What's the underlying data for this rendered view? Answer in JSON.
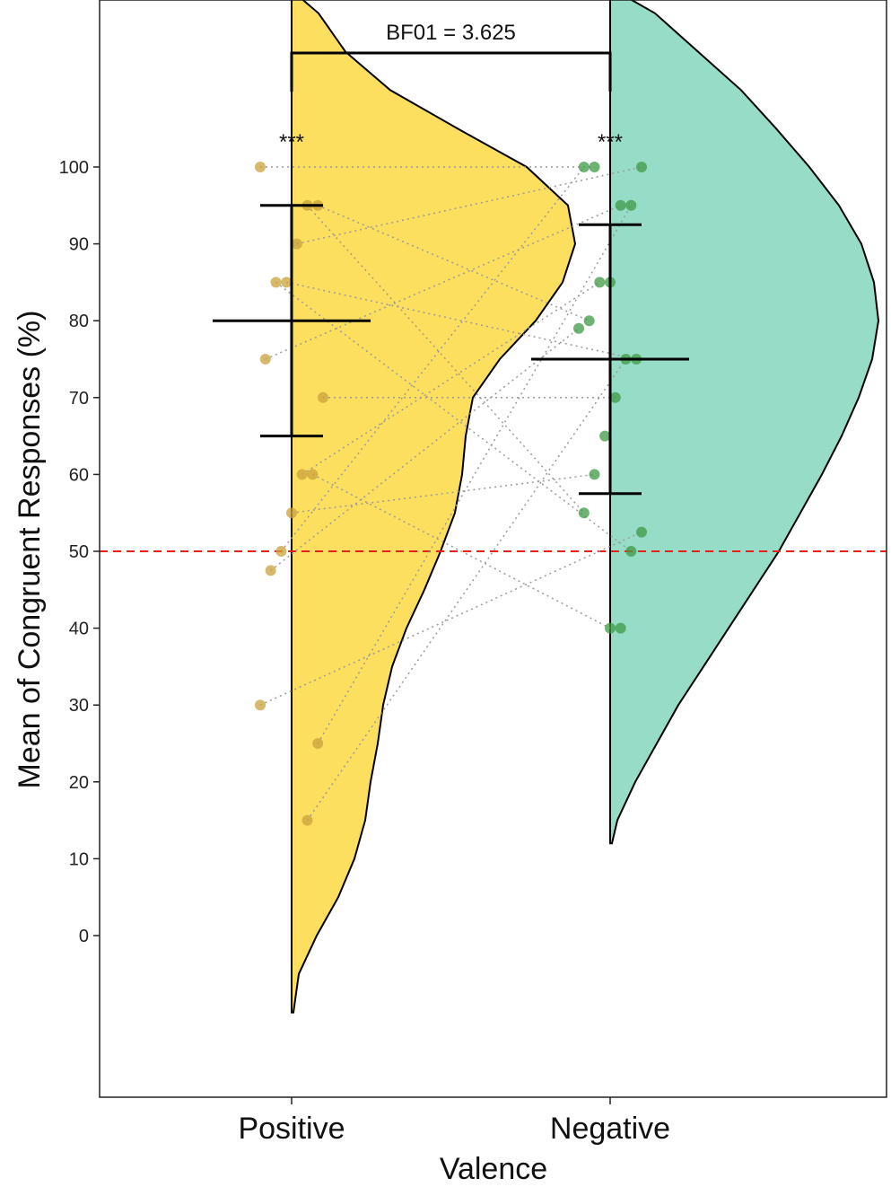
{
  "chart_data": {
    "type": "raincloud",
    "xlabel": "Valence",
    "ylabel": "Mean of Congruent Responses (%)",
    "categories": [
      "Positive",
      "Negative"
    ],
    "yticks": [
      0,
      10,
      20,
      30,
      40,
      50,
      60,
      70,
      80,
      90,
      100
    ],
    "ylim": [
      -20,
      120
    ],
    "reference_line": {
      "y": 50,
      "color": "#e8201a",
      "style": "dashed"
    },
    "annotation": {
      "label": "BF01 = 3.625"
    },
    "significance": [
      {
        "category": "Positive",
        "label": "***"
      },
      {
        "category": "Negative",
        "label": "***"
      }
    ],
    "series": [
      {
        "category": "Positive",
        "fill_color": "#fddf60",
        "point_color": "#c9a23a",
        "mean": 80,
        "error_low": 65,
        "error_high": 95,
        "points": [
          100,
          95,
          95,
          90,
          85,
          85,
          75,
          70,
          60,
          60,
          55,
          50,
          47.5,
          30,
          25,
          15
        ]
      },
      {
        "category": "Negative",
        "fill_color": "#97dcc7",
        "point_color": "#3e9a45",
        "mean": 75,
        "error_low": 57.5,
        "error_high": 92.5,
        "points": [
          100,
          100,
          100,
          95,
          95,
          85,
          85,
          80,
          79,
          75,
          75,
          70,
          65,
          60,
          55,
          52.5,
          50,
          40,
          40
        ]
      }
    ]
  }
}
